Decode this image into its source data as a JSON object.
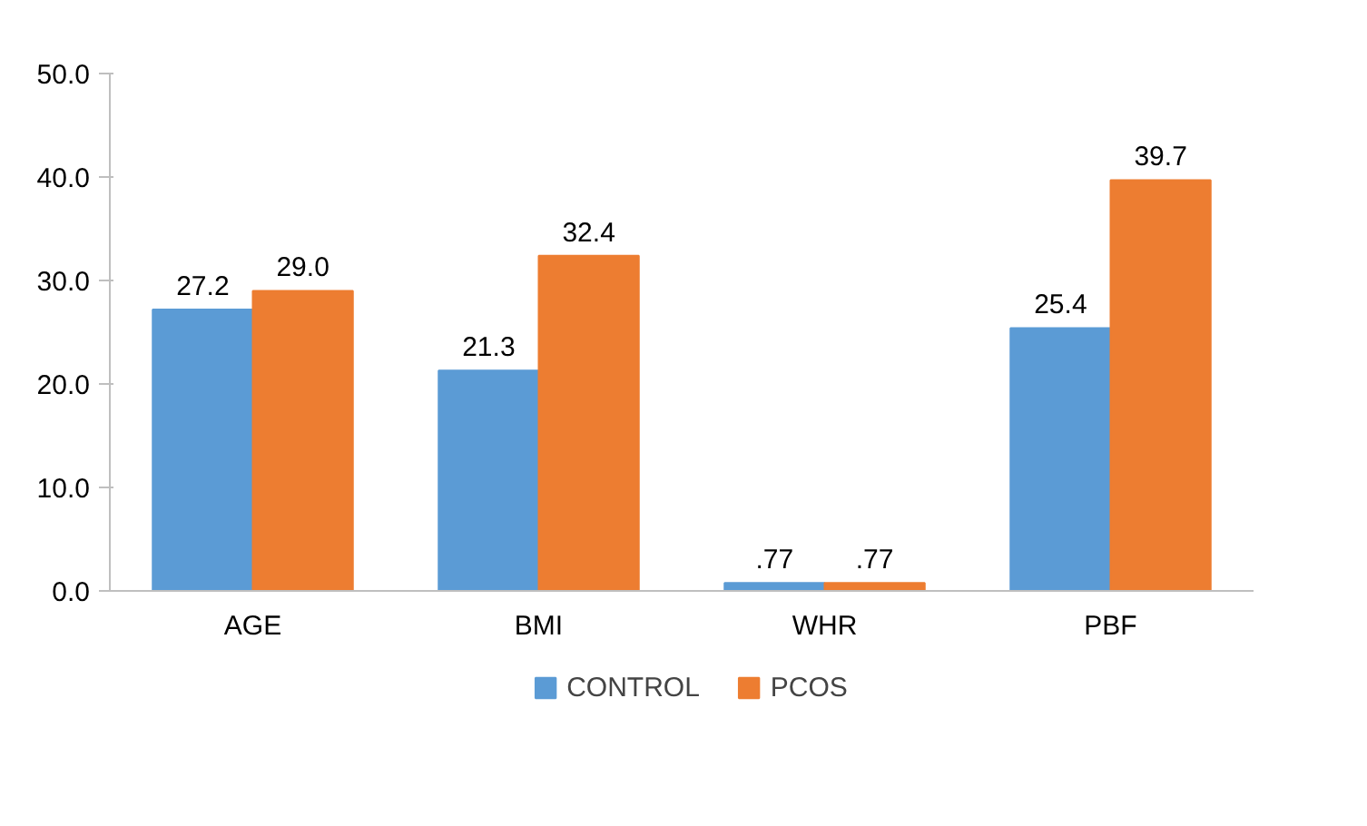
{
  "chart_data": {
    "type": "bar",
    "categories": [
      "AGE",
      "BMI",
      "WHR",
      "PBF"
    ],
    "series": [
      {
        "name": "CONTROL",
        "color": "#5b9bd5",
        "values": [
          27.2,
          21.3,
          0.77,
          25.4
        ],
        "value_labels": [
          "27.2",
          "21.3",
          ".77",
          "25.4"
        ]
      },
      {
        "name": "PCOS",
        "color": "#ed7d31",
        "values": [
          29.0,
          32.4,
          0.77,
          39.7
        ],
        "value_labels": [
          "29.0",
          "32.4",
          ".77",
          "39.7"
        ]
      }
    ],
    "ylim": [
      0,
      50
    ],
    "yticks": [
      {
        "value": 0,
        "label": "0.0"
      },
      {
        "value": 10,
        "label": "10.0"
      },
      {
        "value": 20,
        "label": "20.0"
      },
      {
        "value": 30,
        "label": "30.0"
      },
      {
        "value": 40,
        "label": "40.0"
      },
      {
        "value": 50,
        "label": "50.0"
      }
    ],
    "grid": false,
    "legend": "bottom"
  }
}
